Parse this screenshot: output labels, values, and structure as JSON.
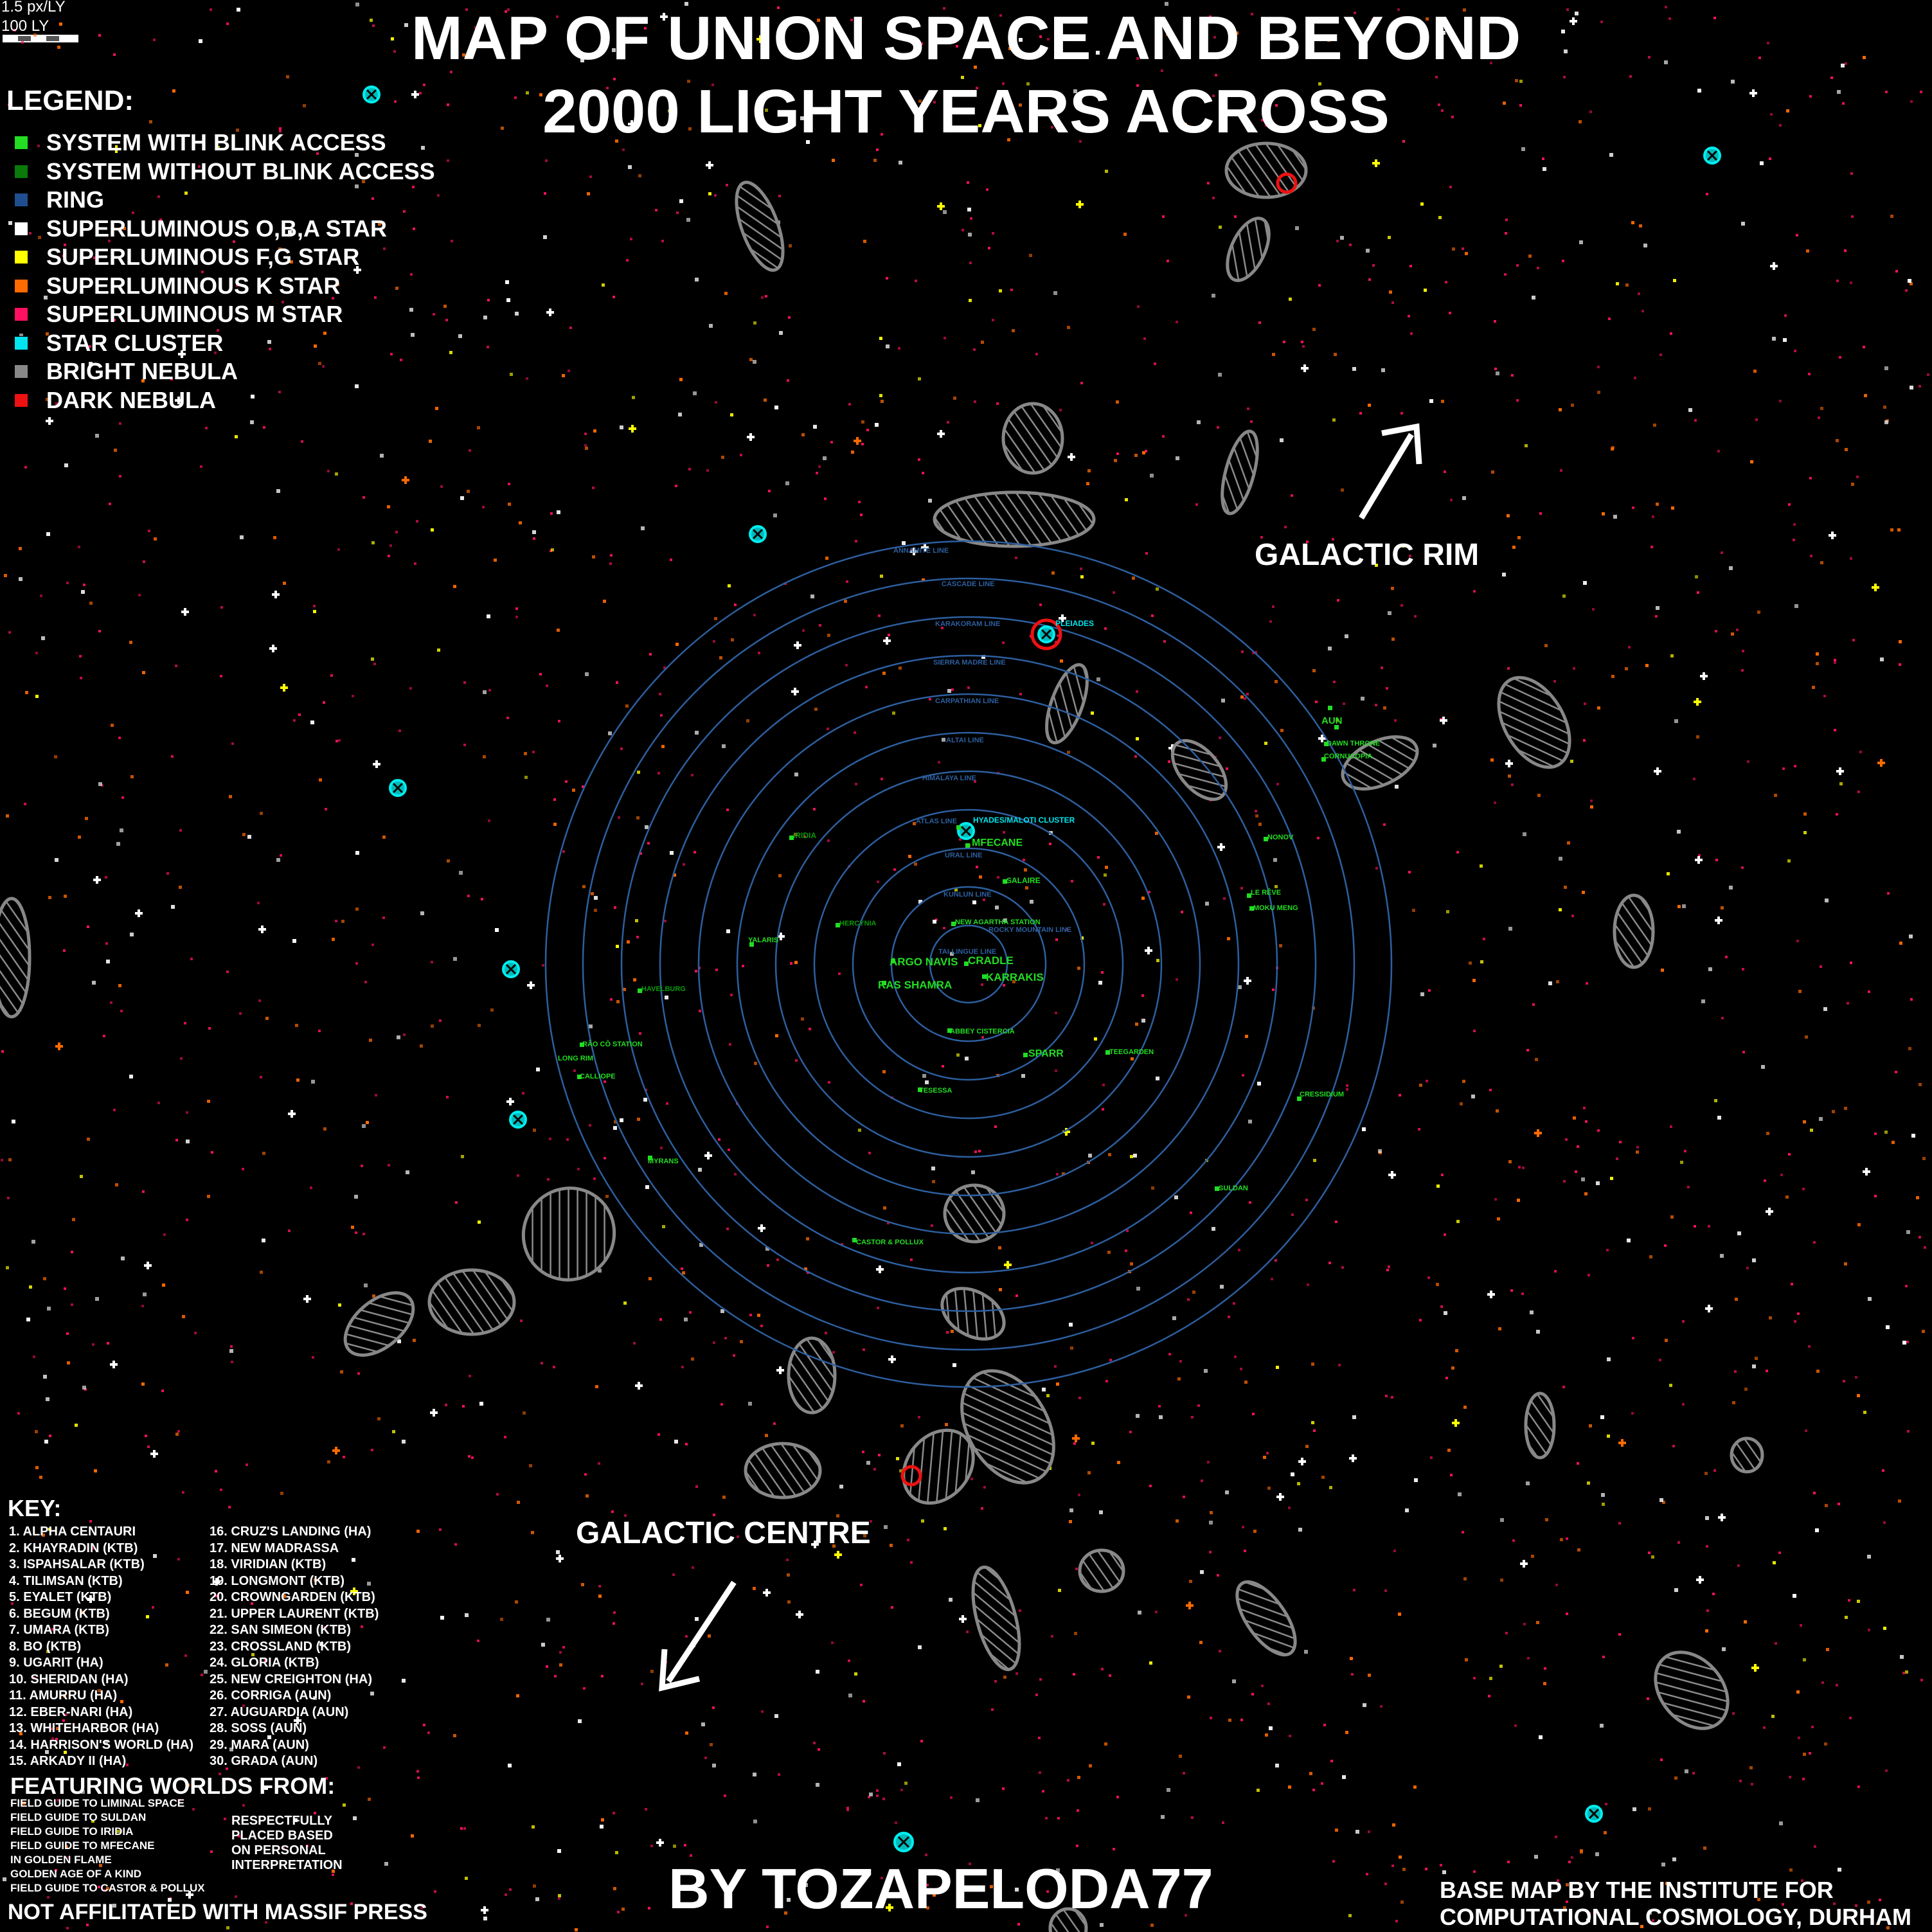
{
  "title": {
    "line1": "MAP OF UNION SPACE AND BEYOND",
    "line2": "2000 LIGHT YEARS ACROSS"
  },
  "scale": {
    "ratio": "1.5 px/LY",
    "distance": "100 LY"
  },
  "legend": {
    "title": "LEGEND:",
    "items": [
      {
        "label": "SYSTEM WITH BLINK ACCESS",
        "color": "#22dd22"
      },
      {
        "label": "SYSTEM WITHOUT BLINK ACCESS",
        "color": "#0a7a0a"
      },
      {
        "label": "RING",
        "color": "#1f4f8f"
      },
      {
        "label": "SUPERLUMINOUS O,B,A STAR",
        "color": "#ffffff"
      },
      {
        "label": "SUPERLUMINOUS F,G STAR",
        "color": "#ffff00"
      },
      {
        "label": "SUPERLUMINOUS K STAR",
        "color": "#ff6a00"
      },
      {
        "label": "SUPERLUMINOUS M STAR",
        "color": "#ff1060"
      },
      {
        "label": "STAR CLUSTER",
        "color": "#00e5ee"
      },
      {
        "label": "BRIGHT NEBULA",
        "color": "#888888"
      },
      {
        "label": "DARK NEBULA",
        "color": "#ee1111"
      }
    ]
  },
  "directions": {
    "rim": "GALACTIC RIM",
    "centre": "GALACTIC CENTRE"
  },
  "rings": [
    "ANNAMITE LINE",
    "CASCADE LINE",
    "KARAKORAM LINE",
    "SIERRA MADRE LINE",
    "CARPATHIAN LINE",
    "ALTAI LINE",
    "HIMALAYA LINE",
    "ATLAS LINE",
    "URAL LINE",
    "KUNLUN LINE",
    "ROCKY MOUNTAIN LINE",
    "TAI-LINGUE LINE"
  ],
  "map_labels": {
    "pleiades": "PLEIADES",
    "hyades": "HYADES/MALOTI CLUSTER",
    "mfecane": "MFECANE",
    "salaire": "SALAIRE",
    "iridia": "IRIDIA",
    "hercynia": "HERCYNIA",
    "yalaris": "YALARIS",
    "havelburg": "HAVELBURG",
    "new_agartha": "NEW AGARTHA STATION",
    "argo_navis": "ARGO NAVIS",
    "cradle": "CRADLE",
    "karrakis": "KARRAKIS",
    "ras_shamra": "RAS SHAMRA",
    "abbey": "ABBEY CISTERCIA",
    "sparr": "SPARR",
    "teegarden": "TEEGARDEN",
    "tessesa": "TESESSA",
    "rao_co": "RÃO CÔ STATION",
    "long_rim": "LONG RIM",
    "calliope": "CALLIOPE",
    "myrans": "MYRANS",
    "castor_pollux": "CASTOR & POLLUX",
    "suldan": "SULDAN",
    "cressidium": "CRESSIDIUM",
    "le_reve": "LE RÊVE",
    "moku": "MOKU MENG",
    "nonov": "NONOV",
    "aun": "AUN",
    "dawn_throne": "DAWN THRONE",
    "cornucopia": "CORNUCOPIA"
  },
  "key": {
    "title": "KEY:",
    "col1": [
      "1. ALPHA CENTAURI",
      "2. KHAYRADIN (KTB)",
      "3. ISPAHSALAR (KTB)",
      "4. TILIMSAN (KTB)",
      "5. EYALET (KTB)",
      "6. BEGUM (KTB)",
      "7. UMARA (KTB)",
      "8. BO (KTB)",
      "9. UGARIT (HA)",
      "10. SHERIDAN (HA)",
      "11. AMURRU (HA)",
      "12. EBER-NARI (HA)",
      "13. WHITEHARBOR (HA)",
      "14. HARRISON'S WORLD (HA)",
      "15. ARKADY II (HA)"
    ],
    "col2": [
      "16. CRUZ'S LANDING (HA)",
      "17. NEW MADRASSA",
      "18. VIRIDIAN (KTB)",
      "19. LONGMONT (KTB)",
      "20. CROWNGARDEN (KTB)",
      "21. UPPER LAURENT (KTB)",
      "22. SAN SIMEON (KTB)",
      "23. CROSSLAND (KTB)",
      "24. GLORIA (KTB)",
      "25. NEW CREIGHTON (HA)",
      "26. CORRIGA (AUN)",
      "27. AUGUARDIA (AUN)",
      "28. SOSS (AUN)",
      "29. MARA (AUN)",
      "30. GRADA (AUN)"
    ]
  },
  "featuring": {
    "title": "FEATURING WORLDS FROM:",
    "items": [
      "FIELD GUIDE TO LIMINAL SPACE",
      "FIELD GUIDE TO SULDAN",
      "FIELD GUIDE TO IRIDIA",
      "FIELD GUIDE TO MFECANE",
      "IN GOLDEN FLAME",
      "GOLDEN AGE OF A KIND",
      "FIELD GUIDE TO CASTOR & POLLUX"
    ],
    "note": [
      "RESPECTFULLY",
      "PLACED BASED",
      "ON PERSONAL",
      "INTERPRETATION"
    ]
  },
  "credits": {
    "author": "BY TOZAPELODA77",
    "disclaimer": "NOT AFFILITATED WITH MASSIF PRESS",
    "base_map_line1": "BASE MAP BY THE INSTITUTE FOR",
    "base_map_line2": "COMPUTATIONAL COSMOLOGY, DURHAM"
  }
}
